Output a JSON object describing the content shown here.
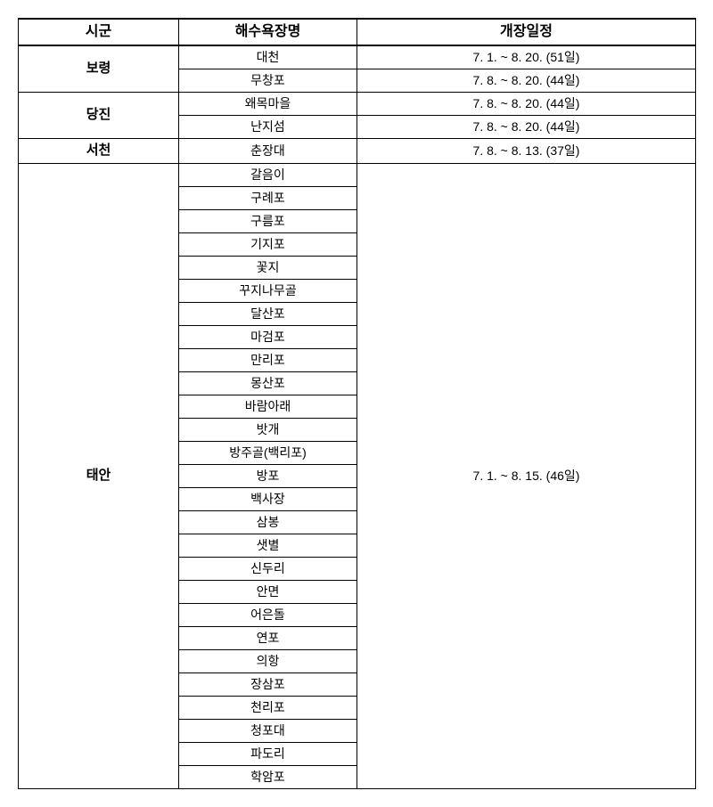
{
  "headers": {
    "region": "시군",
    "beach": "해수욕장명",
    "schedule": "개장일정"
  },
  "regions": [
    {
      "name": "보령",
      "beaches": [
        "대천",
        "무창포"
      ],
      "schedules": [
        "7.  1. ~ 8.  20. (51일)",
        "7.  8. ~ 8.  20. (44일)"
      ]
    },
    {
      "name": "당진",
      "beaches": [
        "왜목마을",
        "난지섬"
      ],
      "schedules": [
        "7.  8. ~ 8.  20. (44일)",
        "7.  8. ~ 8.  20. (44일)"
      ]
    },
    {
      "name": "서천",
      "beaches": [
        "춘장대"
      ],
      "schedules": [
        "7.  8. ~ 8.  13. (37일)"
      ]
    },
    {
      "name": "태안",
      "beaches": [
        "갈음이",
        "구례포",
        "구름포",
        "기지포",
        "꽃지",
        "꾸지나무골",
        "달산포",
        "마검포",
        "만리포",
        "몽산포",
        "바람아래",
        "밧개",
        "방주골(백리포)",
        "방포",
        "백사장",
        "삼봉",
        "샛별",
        "신두리",
        "안면",
        "어은돌",
        "연포",
        "의항",
        "장삼포",
        "천리포",
        "청포대",
        "파도리",
        "학암포"
      ],
      "schedule_merged": "7.  1. ~ 8.  15. (46일)"
    }
  ]
}
